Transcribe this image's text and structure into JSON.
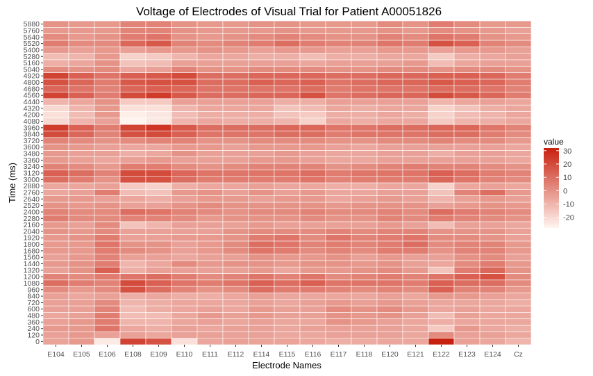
{
  "chart_data": {
    "type": "heatmap",
    "title": "Voltage of Electrodes of Visual Trial for Patient A00051826",
    "xlabel": "Electrode Names",
    "ylabel": "Time (ms)",
    "x_categories": [
      "E104",
      "E105",
      "E106",
      "E108",
      "E109",
      "E110",
      "E111",
      "E112",
      "E114",
      "E115",
      "E116",
      "E117",
      "E118",
      "E120",
      "E121",
      "E122",
      "E123",
      "E124",
      "Cz"
    ],
    "y_categories": [
      0,
      120,
      240,
      360,
      480,
      600,
      720,
      840,
      960,
      1080,
      1200,
      1320,
      1440,
      1560,
      1680,
      1800,
      1920,
      2040,
      2160,
      2280,
      2400,
      2520,
      2640,
      2760,
      2880,
      3000,
      3120,
      3240,
      3360,
      3480,
      3600,
      3720,
      3840,
      3960,
      4080,
      4200,
      4320,
      4440,
      4560,
      4680,
      4800,
      4920,
      5040,
      5160,
      5280,
      5400,
      5520,
      5640,
      5760,
      5880
    ],
    "y_tick_labels_shown": [
      "0",
      "120",
      "240",
      "360",
      "480",
      "600",
      "720",
      "840",
      "960",
      "1080",
      "1200",
      "1320",
      "1440",
      "1560",
      "1680",
      "1800",
      "1920",
      "2040",
      "2160",
      "2280",
      "2400",
      "2520",
      "2640",
      "2760",
      "2880",
      "3000",
      "3120",
      "3240",
      "3360",
      "3480",
      "3600",
      "3720",
      "3840",
      "3960",
      "4080",
      "4200",
      "4320",
      "4440",
      "4560",
      "4680",
      "4800",
      "4920",
      "5040",
      "5160",
      "5280",
      "5400",
      "5520",
      "5640",
      "5760",
      "5880"
    ],
    "colorbar": {
      "title": "value",
      "low_color": "#fff5f0",
      "high_color": "#c8200e",
      "min": -28,
      "max": 32,
      "ticks": [
        30,
        20,
        10,
        0,
        -10,
        -20
      ]
    },
    "values_note": "rows ordered from time 0 (bottom) to 5880 (top); columns follow x_categories",
    "values": [
      [
        -5,
        -2,
        -25,
        22,
        18,
        -22,
        -6,
        -4,
        -5,
        -5,
        -6,
        -8,
        -7,
        -6,
        -6,
        32,
        -4,
        -6,
        -10
      ],
      [
        -4,
        -2,
        -4,
        -4,
        -6,
        -4,
        -4,
        -4,
        -4,
        -6,
        -6,
        -4,
        -4,
        -4,
        -6,
        2,
        -4,
        -4,
        -6
      ],
      [
        -2,
        -2,
        8,
        -6,
        -8,
        -4,
        -6,
        -4,
        -4,
        -6,
        -4,
        -4,
        -4,
        -4,
        -6,
        -16,
        -2,
        -6,
        -8
      ],
      [
        -4,
        -2,
        6,
        -10,
        -10,
        -6,
        -4,
        -6,
        -4,
        -6,
        -6,
        0,
        -2,
        -4,
        -6,
        -8,
        -6,
        -6,
        -6
      ],
      [
        -6,
        -4,
        6,
        -12,
        -12,
        -6,
        -2,
        -4,
        -2,
        -4,
        -4,
        0,
        -2,
        0,
        -4,
        -12,
        -4,
        -6,
        -6
      ],
      [
        -4,
        -4,
        4,
        -12,
        -8,
        -6,
        -4,
        -6,
        -2,
        -4,
        -4,
        2,
        0,
        2,
        -2,
        -6,
        -4,
        -6,
        -6
      ],
      [
        -4,
        -4,
        2,
        -10,
        -8,
        -6,
        -6,
        -6,
        -4,
        -6,
        -4,
        -2,
        -4,
        -2,
        -4,
        -6,
        -6,
        -6,
        -8
      ],
      [
        -4,
        -6,
        -4,
        -8,
        -6,
        -8,
        -8,
        -6,
        -4,
        -6,
        -6,
        -6,
        -6,
        -4,
        -6,
        -2,
        -2,
        -4,
        -6
      ],
      [
        2,
        -2,
        2,
        18,
        10,
        4,
        0,
        2,
        10,
        6,
        6,
        4,
        2,
        4,
        2,
        14,
        4,
        4,
        -2
      ],
      [
        10,
        6,
        4,
        20,
        14,
        8,
        6,
        8,
        14,
        10,
        14,
        8,
        8,
        8,
        6,
        14,
        10,
        10,
        2
      ],
      [
        4,
        2,
        6,
        8,
        10,
        6,
        2,
        4,
        8,
        4,
        8,
        2,
        4,
        6,
        4,
        8,
        14,
        18,
        2
      ],
      [
        -4,
        0,
        14,
        -8,
        -4,
        -4,
        -4,
        -4,
        -2,
        -6,
        -2,
        -2,
        0,
        2,
        -2,
        -14,
        6,
        12,
        0
      ],
      [
        -2,
        0,
        6,
        -10,
        -6,
        2,
        -2,
        0,
        0,
        -2,
        0,
        0,
        -2,
        0,
        -4,
        -6,
        2,
        6,
        -2
      ],
      [
        -4,
        -2,
        4,
        -4,
        -4,
        -6,
        -4,
        -4,
        0,
        -2,
        -2,
        0,
        -4,
        -2,
        -4,
        -4,
        0,
        2,
        -4
      ],
      [
        -2,
        -2,
        6,
        2,
        0,
        -4,
        -2,
        2,
        8,
        6,
        2,
        4,
        2,
        6,
        6,
        0,
        4,
        4,
        -2
      ],
      [
        -2,
        -2,
        8,
        0,
        0,
        -4,
        -2,
        2,
        10,
        8,
        4,
        6,
        4,
        6,
        10,
        2,
        4,
        4,
        -2
      ],
      [
        -2,
        0,
        6,
        -4,
        -4,
        -2,
        -2,
        0,
        6,
        8,
        2,
        8,
        4,
        6,
        8,
        2,
        2,
        0,
        -4
      ],
      [
        0,
        -2,
        2,
        -4,
        -4,
        -4,
        -4,
        0,
        2,
        2,
        2,
        4,
        2,
        4,
        4,
        0,
        0,
        0,
        -4
      ],
      [
        -2,
        -4,
        2,
        -14,
        -10,
        -4,
        -4,
        -4,
        -2,
        -4,
        -4,
        -4,
        -4,
        -2,
        -4,
        -12,
        -4,
        -4,
        -6
      ],
      [
        6,
        2,
        2,
        4,
        4,
        2,
        -2,
        0,
        0,
        0,
        2,
        0,
        0,
        4,
        2,
        6,
        4,
        2,
        0
      ],
      [
        4,
        2,
        2,
        10,
        8,
        4,
        2,
        0,
        2,
        2,
        4,
        2,
        2,
        4,
        2,
        10,
        6,
        4,
        2
      ],
      [
        0,
        -2,
        0,
        -4,
        -4,
        0,
        2,
        0,
        0,
        0,
        0,
        -2,
        0,
        0,
        0,
        -4,
        -2,
        0,
        -2
      ],
      [
        -2,
        -2,
        -4,
        -6,
        -8,
        -4,
        -2,
        -2,
        -4,
        -2,
        -2,
        -6,
        -4,
        -2,
        -4,
        -10,
        -4,
        -2,
        -4
      ],
      [
        -6,
        -4,
        6,
        -12,
        -14,
        -2,
        0,
        -4,
        0,
        -4,
        -2,
        -6,
        -6,
        -4,
        -4,
        -14,
        4,
        10,
        -2
      ],
      [
        -6,
        -6,
        -4,
        -16,
        -18,
        -8,
        -6,
        -6,
        -4,
        -6,
        -6,
        -8,
        -8,
        -6,
        -6,
        -18,
        -6,
        -4,
        -6
      ],
      [
        10,
        6,
        0,
        18,
        18,
        10,
        6,
        6,
        6,
        6,
        8,
        4,
        6,
        6,
        6,
        12,
        8,
        4,
        2
      ],
      [
        14,
        10,
        4,
        20,
        20,
        12,
        8,
        8,
        8,
        8,
        10,
        6,
        8,
        8,
        8,
        14,
        10,
        6,
        4
      ],
      [
        4,
        2,
        -2,
        6,
        6,
        2,
        0,
        2,
        4,
        4,
        4,
        0,
        2,
        4,
        6,
        4,
        4,
        2,
        0
      ],
      [
        -2,
        -4,
        -6,
        -4,
        -2,
        -4,
        -4,
        -4,
        -2,
        -2,
        -4,
        -6,
        -6,
        -4,
        -4,
        -4,
        -4,
        -4,
        -6
      ],
      [
        -2,
        -4,
        -4,
        -8,
        -6,
        0,
        -4,
        -4,
        -4,
        -2,
        -4,
        -6,
        -6,
        -4,
        -4,
        -8,
        -4,
        -4,
        -6
      ],
      [
        0,
        -2,
        -4,
        -6,
        -6,
        -2,
        -2,
        -4,
        -2,
        -2,
        -2,
        -4,
        -6,
        -4,
        -4,
        -4,
        -4,
        -4,
        -6
      ],
      [
        4,
        2,
        0,
        2,
        4,
        4,
        0,
        0,
        2,
        2,
        2,
        0,
        0,
        2,
        2,
        4,
        2,
        2,
        -2
      ],
      [
        20,
        12,
        4,
        18,
        20,
        14,
        8,
        8,
        8,
        10,
        10,
        6,
        8,
        8,
        8,
        10,
        10,
        6,
        2
      ],
      [
        24,
        14,
        6,
        22,
        26,
        16,
        10,
        10,
        10,
        12,
        12,
        8,
        8,
        10,
        10,
        12,
        12,
        8,
        4
      ],
      [
        -20,
        -10,
        -4,
        -28,
        -24,
        -10,
        -6,
        -8,
        -8,
        -10,
        -18,
        -6,
        -8,
        -6,
        -6,
        -16,
        -10,
        -8,
        -6
      ],
      [
        -22,
        -12,
        -2,
        -26,
        -24,
        -12,
        -8,
        -8,
        -8,
        -14,
        -16,
        -8,
        -8,
        -6,
        -8,
        -18,
        -12,
        -10,
        -6
      ],
      [
        -20,
        -10,
        -2,
        -22,
        -22,
        -10,
        -6,
        -6,
        -6,
        -14,
        -12,
        -6,
        -8,
        -6,
        -6,
        -18,
        -14,
        -8,
        -6
      ],
      [
        -10,
        -6,
        0,
        -16,
        -16,
        -4,
        -4,
        -4,
        -4,
        -8,
        -8,
        -4,
        -4,
        -4,
        -4,
        -10,
        -6,
        -4,
        -6
      ],
      [
        22,
        14,
        6,
        20,
        24,
        16,
        10,
        10,
        12,
        12,
        18,
        8,
        10,
        12,
        12,
        20,
        16,
        12,
        6
      ],
      [
        12,
        8,
        4,
        12,
        14,
        12,
        8,
        8,
        8,
        8,
        10,
        6,
        8,
        8,
        8,
        10,
        10,
        8,
        4
      ],
      [
        18,
        12,
        6,
        16,
        18,
        18,
        10,
        10,
        14,
        12,
        14,
        8,
        10,
        12,
        12,
        16,
        14,
        12,
        6
      ],
      [
        22,
        14,
        8,
        14,
        16,
        20,
        10,
        10,
        12,
        12,
        12,
        10,
        10,
        12,
        12,
        14,
        14,
        12,
        6
      ],
      [
        2,
        0,
        2,
        -6,
        -4,
        4,
        0,
        0,
        2,
        2,
        2,
        0,
        0,
        2,
        2,
        0,
        2,
        2,
        0
      ],
      [
        -8,
        -6,
        0,
        -14,
        -12,
        -4,
        -4,
        -4,
        -4,
        -4,
        -6,
        -4,
        -4,
        -4,
        -2,
        -12,
        -6,
        -4,
        -4
      ],
      [
        -12,
        -10,
        -2,
        -18,
        -16,
        -10,
        -6,
        -6,
        -8,
        -8,
        -12,
        -8,
        -8,
        -6,
        -6,
        -16,
        -8,
        -6,
        -4
      ],
      [
        -2,
        -4,
        -2,
        -4,
        -2,
        -2,
        0,
        -2,
        -4,
        -2,
        -2,
        -4,
        -4,
        -2,
        -2,
        -4,
        -2,
        -2,
        -4
      ],
      [
        6,
        2,
        2,
        12,
        16,
        4,
        2,
        4,
        6,
        10,
        6,
        4,
        4,
        8,
        6,
        18,
        14,
        4,
        2
      ],
      [
        2,
        -2,
        0,
        6,
        8,
        0,
        -2,
        0,
        2,
        4,
        2,
        0,
        0,
        4,
        2,
        8,
        6,
        0,
        -2
      ],
      [
        -2,
        -2,
        -2,
        4,
        4,
        0,
        -2,
        -2,
        -2,
        0,
        -2,
        -2,
        -2,
        0,
        -2,
        2,
        0,
        -2,
        -4
      ],
      [
        0,
        -2,
        -2,
        4,
        4,
        0,
        -2,
        -2,
        0,
        0,
        -2,
        -2,
        -2,
        2,
        0,
        6,
        2,
        -2,
        -2
      ]
    ]
  }
}
